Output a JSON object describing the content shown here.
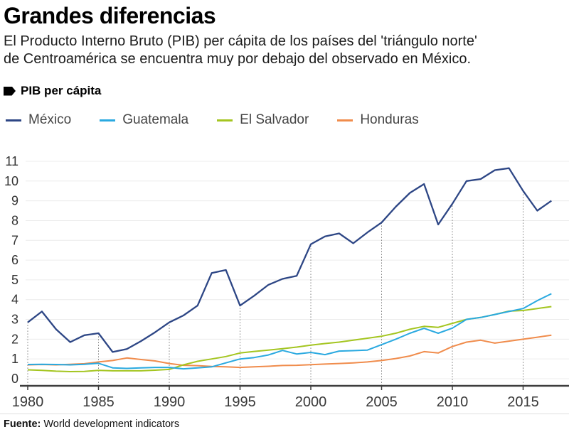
{
  "header": {
    "title": "Grandes diferencias",
    "subtitle_lines": [
      "El Producto Interno Bruto (PIB) per cápita de los países del 'triángulo norte'",
      "de Centroamérica se encuentra muy por debajo del observado en México."
    ],
    "kicker": "PIB per cápita"
  },
  "legend": [
    {
      "label": "México",
      "color": "#2d4685"
    },
    {
      "label": "Guatemala",
      "color": "#2aa9e0"
    },
    {
      "label": "El Salvador",
      "color": "#a4c520"
    },
    {
      "label": "Honduras",
      "color": "#f08c4c"
    }
  ],
  "chart_data": {
    "type": "line",
    "title": "PIB per cápita",
    "ylim": [
      0,
      11
    ],
    "y_ticks": [
      0,
      1,
      2,
      3,
      4,
      5,
      6,
      7,
      8,
      9,
      10,
      11
    ],
    "x_tick_years": [
      1980,
      1985,
      1990,
      1995,
      2000,
      2005,
      2010,
      2015
    ],
    "grid": "horizontal light gray, dotted vertical guides at 5-year ticks up to México line",
    "legend_position": "top",
    "years": [
      1980,
      1981,
      1982,
      1983,
      1984,
      1985,
      1986,
      1987,
      1988,
      1989,
      1990,
      1991,
      1992,
      1993,
      1994,
      1995,
      1996,
      1997,
      1998,
      1999,
      2000,
      2001,
      2002,
      2003,
      2004,
      2005,
      2006,
      2007,
      2008,
      2009,
      2010,
      2011,
      2012,
      2013,
      2014,
      2015,
      2016,
      2017
    ],
    "series": [
      {
        "name": "México",
        "color": "#2d4685",
        "values": [
          2.85,
          3.4,
          2.5,
          1.85,
          2.2,
          2.3,
          1.35,
          1.5,
          1.9,
          2.35,
          2.85,
          3.2,
          3.7,
          5.35,
          5.5,
          3.7,
          4.2,
          4.75,
          5.05,
          5.2,
          6.8,
          7.2,
          7.35,
          6.85,
          7.4,
          7.9,
          8.7,
          9.4,
          9.85,
          7.8,
          8.85,
          10.0,
          10.1,
          10.55,
          10.65,
          9.5,
          8.5,
          9.0
        ]
      },
      {
        "name": "Guatemala",
        "color": "#2aa9e0",
        "values": [
          0.72,
          0.73,
          0.72,
          0.7,
          0.73,
          0.78,
          0.55,
          0.52,
          0.55,
          0.57,
          0.57,
          0.5,
          0.55,
          0.6,
          0.8,
          1.0,
          1.07,
          1.2,
          1.43,
          1.25,
          1.33,
          1.22,
          1.4,
          1.42,
          1.45,
          1.72,
          2.0,
          2.3,
          2.55,
          2.3,
          2.56,
          3.0,
          3.1,
          3.25,
          3.4,
          3.55,
          3.95,
          4.3
        ]
      },
      {
        "name": "El Salvador",
        "color": "#a4c520",
        "values": [
          0.45,
          0.42,
          0.38,
          0.36,
          0.37,
          0.42,
          0.4,
          0.4,
          0.4,
          0.43,
          0.47,
          0.7,
          0.88,
          1.0,
          1.12,
          1.3,
          1.38,
          1.45,
          1.52,
          1.6,
          1.7,
          1.78,
          1.85,
          1.95,
          2.05,
          2.15,
          2.3,
          2.5,
          2.65,
          2.6,
          2.8,
          3.0,
          3.1,
          3.25,
          3.42,
          3.45,
          3.55,
          3.65
        ]
      },
      {
        "name": "Honduras",
        "color": "#f08c4c",
        "values": [
          0.7,
          0.72,
          0.7,
          0.73,
          0.76,
          0.85,
          0.92,
          1.05,
          0.97,
          0.9,
          0.77,
          0.68,
          0.66,
          0.62,
          0.6,
          0.57,
          0.6,
          0.63,
          0.67,
          0.68,
          0.71,
          0.74,
          0.77,
          0.8,
          0.85,
          0.92,
          1.02,
          1.15,
          1.37,
          1.3,
          1.63,
          1.85,
          1.95,
          1.8,
          1.9,
          2.0,
          2.1,
          2.2
        ]
      }
    ]
  },
  "footer": {
    "source_label": "Fuente:",
    "source_text": " World development indicators"
  }
}
